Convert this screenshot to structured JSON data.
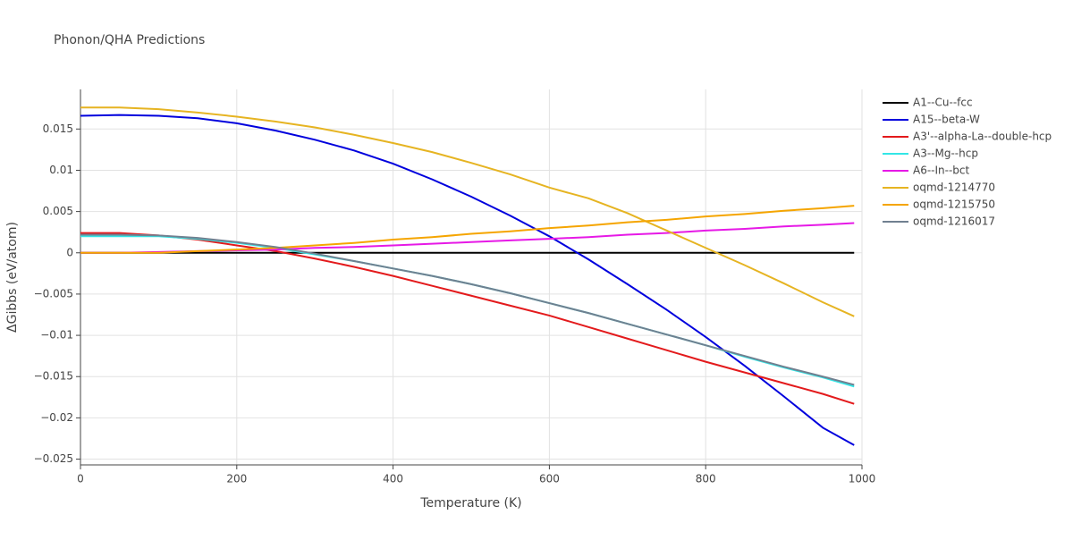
{
  "chart_data": {
    "type": "line",
    "title": "Phonon/QHA Predictions",
    "x_label": "Temperature (K)",
    "y_label": "ΔGibbs (eV/atom)",
    "x": [
      0,
      50,
      100,
      150,
      200,
      250,
      300,
      350,
      400,
      450,
      500,
      550,
      600,
      650,
      700,
      750,
      800,
      850,
      900,
      950,
      990
    ],
    "series": [
      {
        "name": "A1--Cu--fcc",
        "color": "#000000",
        "values": [
          0,
          0,
          0,
          0,
          0,
          0,
          0,
          0,
          0,
          0,
          0,
          0,
          0,
          0,
          0,
          0,
          0,
          0,
          0,
          0,
          0
        ]
      },
      {
        "name": "A15--beta-W",
        "color": "#0000dd",
        "values": [
          0.0166,
          0.0167,
          0.0166,
          0.0163,
          0.0157,
          0.0148,
          0.0137,
          0.0124,
          0.0108,
          0.0089,
          0.0068,
          0.0045,
          0.002,
          -0.0008,
          -0.0038,
          -0.0069,
          -0.0102,
          -0.0137,
          -0.0174,
          -0.0212,
          -0.0233
        ]
      },
      {
        "name": "A3'--alpha-La--double-hcp",
        "color": "#e31a1c",
        "values": [
          0.0024,
          0.0024,
          0.0021,
          0.0016,
          0.0009,
          0.0002,
          -0.0007,
          -0.0017,
          -0.0028,
          -0.004,
          -0.0052,
          -0.0064,
          -0.0076,
          -0.009,
          -0.0104,
          -0.0118,
          -0.0132,
          -0.0145,
          -0.0158,
          -0.0171,
          -0.0183
        ]
      },
      {
        "name": "A3--Mg--hcp",
        "color": "#33e6e6",
        "values": [
          0.002,
          0.002,
          0.002,
          0.0017,
          0.0012,
          0.0006,
          -0.0002,
          -0.001,
          -0.0019,
          -0.0028,
          -0.0038,
          -0.0049,
          -0.0061,
          -0.0073,
          -0.0086,
          -0.0099,
          -0.0112,
          -0.0126,
          -0.0139,
          -0.0151,
          -0.0162
        ]
      },
      {
        "name": "A6--In--bct",
        "color": "#e619e6",
        "values": [
          0,
          0,
          0.0001,
          0.0002,
          0.0003,
          0.0004,
          0.0006,
          0.0007,
          0.0009,
          0.0011,
          0.0013,
          0.0015,
          0.0017,
          0.0019,
          0.0022,
          0.0024,
          0.0027,
          0.0029,
          0.0032,
          0.0034,
          0.0036
        ]
      },
      {
        "name": "oqmd-1214770",
        "color": "#e6b422",
        "values": [
          0.0176,
          0.0176,
          0.0174,
          0.017,
          0.0165,
          0.0159,
          0.0152,
          0.0143,
          0.0133,
          0.0122,
          0.0109,
          0.0095,
          0.0079,
          0.0066,
          0.0048,
          0.0027,
          0.0006,
          -0.0015,
          -0.0037,
          -0.006,
          -0.0077
        ]
      },
      {
        "name": "oqmd-1215750",
        "color": "#f5a500",
        "values": [
          0,
          0,
          0,
          0.0002,
          0.0004,
          0.0006,
          0.0009,
          0.0012,
          0.0016,
          0.0019,
          0.0023,
          0.0026,
          0.003,
          0.0033,
          0.0037,
          0.004,
          0.0044,
          0.0047,
          0.0051,
          0.0054,
          0.0057
        ]
      },
      {
        "name": "oqmd-1216017",
        "color": "#708090",
        "values": [
          0.0022,
          0.0022,
          0.0021,
          0.0018,
          0.0013,
          0.0007,
          -0.0001,
          -0.001,
          -0.0019,
          -0.0028,
          -0.0038,
          -0.0049,
          -0.0061,
          -0.0073,
          -0.0086,
          -0.0099,
          -0.0112,
          -0.0125,
          -0.0138,
          -0.015,
          -0.016
        ]
      }
    ],
    "xlim": [
      0,
      1000
    ],
    "ylim": [
      -0.0257,
      0.0198
    ],
    "xticks": [
      0,
      200,
      400,
      600,
      800,
      1000
    ],
    "yticks": [
      0.015,
      0.01,
      0.005,
      0,
      {
        "value": -0.005,
        "label": "−0.005"
      },
      {
        "value": -0.01,
        "label": "−0.01"
      },
      {
        "value": -0.015,
        "label": "−0.015"
      },
      {
        "value": -0.02,
        "label": "−0.02"
      },
      {
        "value": -0.025,
        "label": "−0.025"
      }
    ],
    "grid": true,
    "legend": "right"
  }
}
